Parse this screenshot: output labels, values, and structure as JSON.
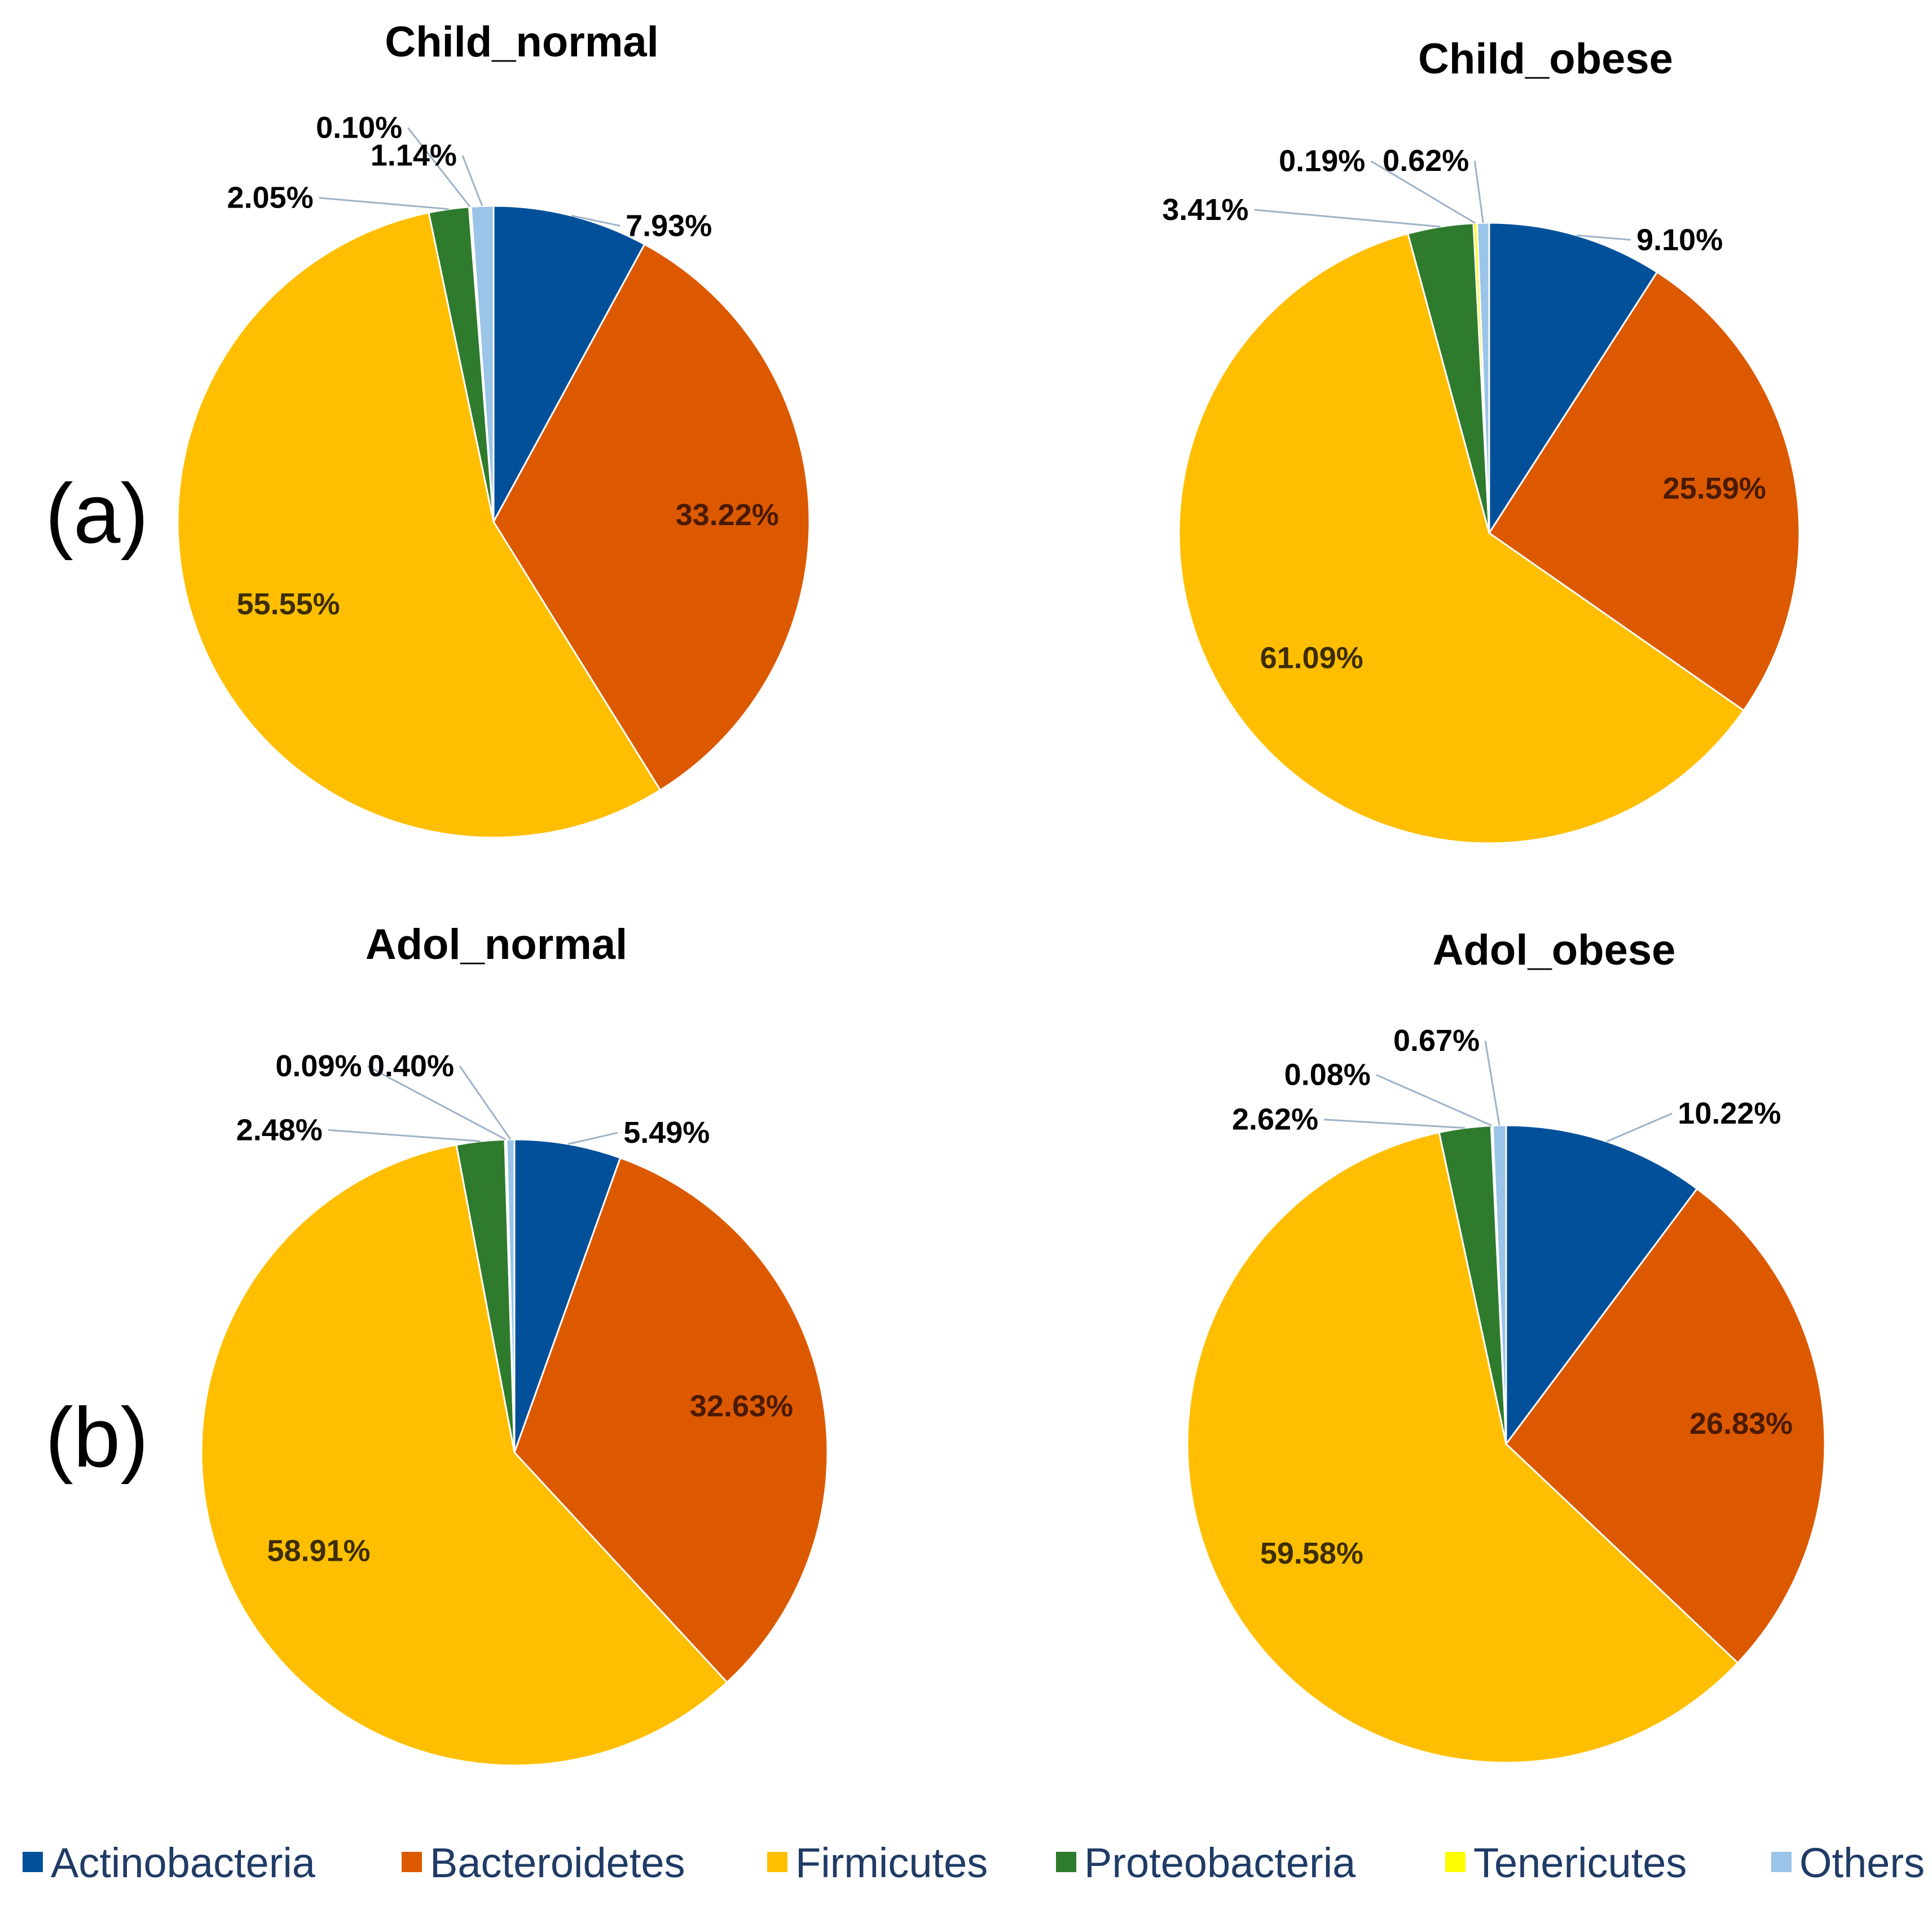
{
  "panel_letters": [
    "(a)",
    "(b)"
  ],
  "colors": {
    "Actinobacteria": "#02509a",
    "Bacteroidetes": "#dc5900",
    "Firmicutes": "#ffbf00",
    "Proteobacteria": "#2e7b2e",
    "Tenericutes": "#ffff00",
    "Others": "#9ac4e8"
  },
  "chart_data": [
    {
      "type": "pie",
      "title": "Child_normal",
      "labels": [
        "Actinobacteria",
        "Bacteroidetes",
        "Firmicutes",
        "Proteobacteria",
        "Tenericutes",
        "Others"
      ],
      "values": [
        7.93,
        33.22,
        55.55,
        2.05,
        0.1,
        1.14
      ],
      "value_labels": [
        "7.93%",
        "33.22%",
        "55.55%",
        "2.05%",
        "0.10%",
        "1.14%"
      ]
    },
    {
      "type": "pie",
      "title": "Child_obese",
      "labels": [
        "Actinobacteria",
        "Bacteroidetes",
        "Firmicutes",
        "Proteobacteria",
        "Tenericutes",
        "Others"
      ],
      "values": [
        9.1,
        25.59,
        61.09,
        3.41,
        0.19,
        0.62
      ],
      "value_labels": [
        "9.10%",
        "25.59%",
        "61.09%",
        "3.41%",
        "0.19%",
        "0.62%"
      ]
    },
    {
      "type": "pie",
      "title": "Adol_normal",
      "labels": [
        "Actinobacteria",
        "Bacteroidetes",
        "Firmicutes",
        "Proteobacteria",
        "Tenericutes",
        "Others"
      ],
      "values": [
        5.49,
        32.63,
        58.91,
        2.48,
        0.09,
        0.4
      ],
      "value_labels": [
        "5.49%",
        "32.63%",
        "58.91%",
        "2.48%",
        "0.09%",
        "0.40%"
      ]
    },
    {
      "type": "pie",
      "title": "Adol_obese",
      "labels": [
        "Actinobacteria",
        "Bacteroidetes",
        "Firmicutes",
        "Proteobacteria",
        "Tenericutes",
        "Others"
      ],
      "values": [
        10.22,
        26.83,
        59.58,
        2.62,
        0.08,
        0.67
      ],
      "value_labels": [
        "10.22%",
        "26.83%",
        "59.58%",
        "2.62%",
        "0.08%",
        "0.67%"
      ]
    }
  ],
  "legend": {
    "placement": "bottom",
    "items": [
      "Actinobacteria",
      "Bacteroidetes",
      "Firmicutes",
      "Proteobacteria",
      "Tenericutes",
      "Others"
    ]
  }
}
